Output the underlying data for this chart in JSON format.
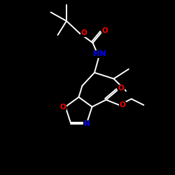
{
  "background": "#000000",
  "bond_color": "#ffffff",
  "N_color": "#0000ff",
  "O_color": "#ff0000",
  "lw": 1.4,
  "lw2": 1.2,
  "fs": 7.5,
  "xlim": [
    0,
    10
  ],
  "ylim": [
    0,
    10
  ]
}
